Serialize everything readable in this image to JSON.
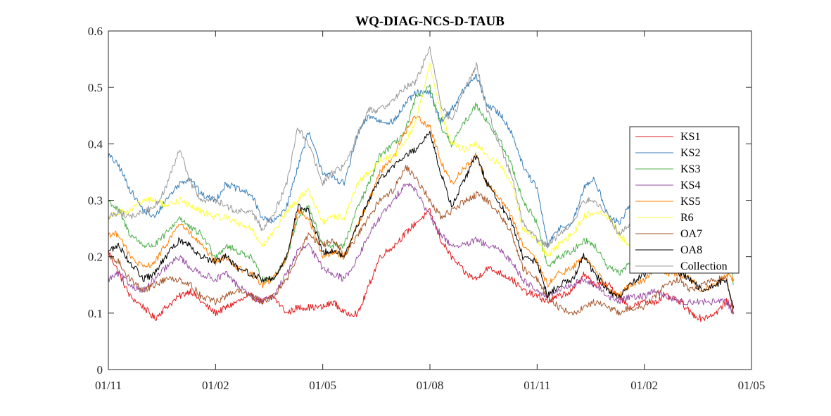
{
  "chart_data": {
    "type": "line",
    "title": "WQ-DIAG-NCS-D-TAUB",
    "xlabel": "",
    "ylabel": "",
    "x_range_index": [
      0,
      18
    ],
    "x_ticks": [
      {
        "index": 0,
        "label": "01/11"
      },
      {
        "index": 3,
        "label": "01/02"
      },
      {
        "index": 6,
        "label": "01/05"
      },
      {
        "index": 9,
        "label": "01/08"
      },
      {
        "index": 12,
        "label": "01/11"
      },
      {
        "index": 15,
        "label": "01/02"
      },
      {
        "index": 18,
        "label": "01/05"
      }
    ],
    "ylim": [
      0,
      0.6
    ],
    "y_ticks": [
      0,
      0.1,
      0.2,
      0.3,
      0.4,
      0.5,
      0.6
    ],
    "y_tick_labels": [
      "0",
      "0.1",
      "0.2",
      "0.3",
      "0.4",
      "0.5",
      "0.6"
    ],
    "grid": false,
    "legend_position": "right",
    "series": [
      {
        "name": "KS1",
        "color": "#e41a1c",
        "x": [
          0,
          0.3,
          0.6,
          1,
          1.3,
          1.6,
          2,
          2.3,
          2.6,
          3,
          3.3,
          3.6,
          4,
          4.3,
          4.6,
          5,
          5.3,
          5.6,
          6,
          6.3,
          6.6,
          7,
          7.3,
          7.6,
          8,
          8.3,
          8.6,
          9,
          9.3,
          9.6,
          10,
          10.3,
          10.6,
          11,
          11.3,
          11.6,
          12,
          12.3,
          12.6,
          13,
          13.3,
          13.6,
          14,
          14.3,
          14.6,
          15,
          15.3,
          15.6,
          16,
          16.3,
          16.6,
          17,
          17.3,
          17.5
        ],
        "y": [
          0.21,
          0.17,
          0.13,
          0.11,
          0.09,
          0.11,
          0.13,
          0.14,
          0.12,
          0.1,
          0.11,
          0.12,
          0.13,
          0.12,
          0.13,
          0.1,
          0.11,
          0.11,
          0.11,
          0.12,
          0.1,
          0.1,
          0.15,
          0.2,
          0.22,
          0.24,
          0.26,
          0.28,
          0.23,
          0.2,
          0.17,
          0.16,
          0.18,
          0.17,
          0.16,
          0.14,
          0.13,
          0.12,
          0.13,
          0.14,
          0.17,
          0.15,
          0.15,
          0.13,
          0.11,
          0.12,
          0.12,
          0.13,
          0.12,
          0.1,
          0.09,
          0.1,
          0.12,
          0.11
        ]
      },
      {
        "name": "KS2",
        "color": "#377eb8",
        "x": [
          0,
          0.3,
          0.6,
          1,
          1.3,
          1.6,
          2,
          2.3,
          2.6,
          3,
          3.3,
          3.6,
          4,
          4.3,
          4.6,
          5,
          5.3,
          5.6,
          6,
          6.3,
          6.6,
          7,
          7.3,
          7.6,
          8,
          8.3,
          8.6,
          9,
          9.3,
          9.6,
          10,
          10.3,
          10.6,
          11,
          11.3,
          11.6,
          12,
          12.3,
          12.6,
          13,
          13.3,
          13.6,
          14,
          14.3,
          14.6,
          15,
          15.3,
          15.6,
          16,
          16.3,
          16.6,
          17,
          17.3,
          17.5
        ],
        "y": [
          0.38,
          0.36,
          0.32,
          0.28,
          0.27,
          0.3,
          0.33,
          0.34,
          0.31,
          0.3,
          0.33,
          0.32,
          0.31,
          0.27,
          0.26,
          0.29,
          0.36,
          0.42,
          0.35,
          0.34,
          0.33,
          0.42,
          0.45,
          0.44,
          0.44,
          0.47,
          0.49,
          0.49,
          0.44,
          0.46,
          0.5,
          0.52,
          0.47,
          0.45,
          0.42,
          0.36,
          0.32,
          0.22,
          0.25,
          0.26,
          0.32,
          0.34,
          0.27,
          0.26,
          0.29,
          0.3,
          0.3,
          0.28,
          0.26,
          0.25,
          0.27,
          0.29,
          0.32,
          0.23
        ]
      },
      {
        "name": "KS3",
        "color": "#4daf4a",
        "x": [
          0,
          0.3,
          0.6,
          1,
          1.3,
          1.6,
          2,
          2.3,
          2.6,
          3,
          3.3,
          3.6,
          4,
          4.3,
          4.6,
          5,
          5.3,
          5.6,
          6,
          6.3,
          6.6,
          7,
          7.3,
          7.6,
          8,
          8.3,
          8.6,
          9,
          9.3,
          9.6,
          10,
          10.3,
          10.6,
          11,
          11.3,
          11.6,
          12,
          12.3,
          12.6,
          13,
          13.3,
          13.6,
          14,
          14.3,
          14.6,
          15,
          15.3,
          15.6,
          16,
          16.3,
          16.6,
          17,
          17.3,
          17.5
        ],
        "y": [
          0.3,
          0.28,
          0.24,
          0.22,
          0.22,
          0.24,
          0.27,
          0.25,
          0.24,
          0.2,
          0.22,
          0.21,
          0.2,
          0.16,
          0.16,
          0.2,
          0.27,
          0.29,
          0.22,
          0.22,
          0.22,
          0.29,
          0.33,
          0.38,
          0.4,
          0.42,
          0.48,
          0.5,
          0.43,
          0.4,
          0.44,
          0.47,
          0.44,
          0.4,
          0.36,
          0.3,
          0.26,
          0.18,
          0.2,
          0.21,
          0.23,
          0.22,
          0.18,
          0.17,
          0.19,
          0.2,
          0.22,
          0.22,
          0.23,
          0.21,
          0.2,
          0.21,
          0.23,
          0.15
        ]
      },
      {
        "name": "KS4",
        "color": "#984ea3",
        "x": [
          0,
          0.3,
          0.6,
          1,
          1.3,
          1.6,
          2,
          2.3,
          2.6,
          3,
          3.3,
          3.6,
          4,
          4.3,
          4.6,
          5,
          5.3,
          5.6,
          6,
          6.3,
          6.6,
          7,
          7.3,
          7.6,
          8,
          8.3,
          8.6,
          9,
          9.3,
          9.6,
          10,
          10.3,
          10.6,
          11,
          11.3,
          11.6,
          12,
          12.3,
          12.6,
          13,
          13.3,
          13.6,
          14,
          14.3,
          14.6,
          15,
          15.3,
          15.6,
          16,
          16.3,
          16.6,
          17,
          17.3,
          17.5
        ],
        "y": [
          0.16,
          0.17,
          0.15,
          0.14,
          0.16,
          0.18,
          0.2,
          0.18,
          0.17,
          0.16,
          0.17,
          0.15,
          0.13,
          0.12,
          0.13,
          0.17,
          0.21,
          0.22,
          0.18,
          0.17,
          0.16,
          0.2,
          0.24,
          0.27,
          0.3,
          0.33,
          0.32,
          0.27,
          0.24,
          0.22,
          0.22,
          0.23,
          0.22,
          0.21,
          0.19,
          0.16,
          0.14,
          0.13,
          0.14,
          0.15,
          0.16,
          0.15,
          0.13,
          0.12,
          0.13,
          0.13,
          0.14,
          0.13,
          0.12,
          0.12,
          0.12,
          0.12,
          0.12,
          0.1
        ]
      },
      {
        "name": "KS5",
        "color": "#ff7f00",
        "x": [
          0,
          0.3,
          0.6,
          1,
          1.3,
          1.6,
          2,
          2.3,
          2.6,
          3,
          3.3,
          3.6,
          4,
          4.3,
          4.6,
          5,
          5.3,
          5.6,
          6,
          6.3,
          6.6,
          7,
          7.3,
          7.6,
          8,
          8.3,
          8.6,
          9,
          9.3,
          9.6,
          10,
          10.3,
          10.6,
          11,
          11.3,
          11.6,
          12,
          12.3,
          12.6,
          13,
          13.3,
          13.6,
          14,
          14.3,
          14.6,
          15,
          15.3,
          15.6,
          16,
          16.3,
          16.6,
          17,
          17.3,
          17.5
        ],
        "y": [
          0.24,
          0.24,
          0.2,
          0.18,
          0.19,
          0.22,
          0.26,
          0.24,
          0.22,
          0.19,
          0.2,
          0.18,
          0.17,
          0.15,
          0.16,
          0.2,
          0.28,
          0.27,
          0.2,
          0.21,
          0.2,
          0.26,
          0.3,
          0.35,
          0.38,
          0.42,
          0.45,
          0.43,
          0.37,
          0.33,
          0.36,
          0.38,
          0.33,
          0.3,
          0.27,
          0.22,
          0.19,
          0.15,
          0.17,
          0.18,
          0.2,
          0.18,
          0.14,
          0.13,
          0.15,
          0.16,
          0.18,
          0.17,
          0.17,
          0.16,
          0.14,
          0.15,
          0.17,
          0.16
        ]
      },
      {
        "name": "R6",
        "color": "#ffff33",
        "x": [
          0,
          0.3,
          0.6,
          1,
          1.3,
          1.6,
          2,
          2.3,
          2.6,
          3,
          3.3,
          3.6,
          4,
          4.3,
          4.6,
          5,
          5.3,
          5.6,
          6,
          6.3,
          6.6,
          7,
          7.3,
          7.6,
          8,
          8.3,
          8.6,
          9,
          9.3,
          9.6,
          10,
          10.3,
          10.6,
          11,
          11.3,
          11.6,
          12,
          12.3,
          12.6,
          13,
          13.3,
          13.6,
          14,
          14.3,
          14.6,
          15,
          15.3,
          15.6,
          16,
          16.3,
          16.6,
          17,
          17.3,
          17.5
        ],
        "y": [
          0.27,
          0.28,
          0.28,
          0.3,
          0.3,
          0.29,
          0.3,
          0.29,
          0.28,
          0.27,
          0.27,
          0.26,
          0.25,
          0.22,
          0.24,
          0.28,
          0.3,
          0.32,
          0.26,
          0.27,
          0.27,
          0.33,
          0.35,
          0.37,
          0.38,
          0.4,
          0.44,
          0.54,
          0.46,
          0.4,
          0.39,
          0.4,
          0.38,
          0.36,
          0.33,
          0.25,
          0.23,
          0.2,
          0.22,
          0.24,
          0.27,
          0.28,
          0.27,
          0.24,
          0.22,
          0.24,
          0.24,
          0.22,
          0.22,
          0.2,
          0.21,
          0.22,
          0.23,
          0.22
        ]
      },
      {
        "name": "OA7",
        "color": "#a65628",
        "x": [
          0,
          0.3,
          0.6,
          1,
          1.3,
          1.6,
          2,
          2.3,
          2.6,
          3,
          3.3,
          3.6,
          4,
          4.3,
          4.6,
          5,
          5.3,
          5.6,
          6,
          6.3,
          6.6,
          7,
          7.3,
          7.6,
          8,
          8.3,
          8.6,
          9,
          9.3,
          9.6,
          10,
          10.3,
          10.6,
          11,
          11.3,
          11.6,
          12,
          12.3,
          12.6,
          13,
          13.3,
          13.6,
          14,
          14.3,
          14.6,
          15,
          15.3,
          15.6,
          16,
          16.3,
          16.6,
          17,
          17.3,
          17.5
        ],
        "y": [
          0.2,
          0.19,
          0.16,
          0.14,
          0.15,
          0.16,
          0.16,
          0.15,
          0.13,
          0.12,
          0.13,
          0.14,
          0.13,
          0.12,
          0.13,
          0.16,
          0.2,
          0.24,
          0.22,
          0.23,
          0.2,
          0.24,
          0.27,
          0.3,
          0.32,
          0.36,
          0.34,
          0.3,
          0.27,
          0.28,
          0.3,
          0.31,
          0.3,
          0.27,
          0.24,
          0.18,
          0.16,
          0.13,
          0.11,
          0.1,
          0.11,
          0.12,
          0.11,
          0.1,
          0.11,
          0.11,
          0.13,
          0.15,
          0.16,
          0.14,
          0.15,
          0.16,
          0.16,
          0.1
        ]
      },
      {
        "name": "OA8",
        "color": "#000000",
        "x": [
          0,
          0.3,
          0.6,
          1,
          1.3,
          1.6,
          2,
          2.3,
          2.6,
          3,
          3.3,
          3.6,
          4,
          4.3,
          4.6,
          5,
          5.3,
          5.6,
          6,
          6.3,
          6.6,
          7,
          7.3,
          7.6,
          8,
          8.3,
          8.6,
          9,
          9.3,
          9.6,
          10,
          10.3,
          10.6,
          11,
          11.3,
          11.6,
          12,
          12.3,
          12.6,
          13,
          13.3,
          13.6,
          14,
          14.3,
          14.6,
          15,
          15.3,
          15.6,
          16,
          16.3,
          16.6,
          17,
          17.3,
          17.5
        ],
        "y": [
          0.21,
          0.22,
          0.19,
          0.16,
          0.17,
          0.2,
          0.23,
          0.22,
          0.2,
          0.19,
          0.2,
          0.18,
          0.17,
          0.16,
          0.16,
          0.2,
          0.29,
          0.28,
          0.21,
          0.21,
          0.2,
          0.26,
          0.3,
          0.34,
          0.36,
          0.38,
          0.39,
          0.42,
          0.35,
          0.29,
          0.34,
          0.38,
          0.33,
          0.29,
          0.26,
          0.2,
          0.19,
          0.13,
          0.15,
          0.16,
          0.2,
          0.17,
          0.14,
          0.13,
          0.15,
          0.17,
          0.19,
          0.18,
          0.17,
          0.16,
          0.14,
          0.15,
          0.16,
          0.11
        ]
      },
      {
        "name": "Collection",
        "color": "#999999",
        "x": [
          0,
          0.3,
          0.6,
          1,
          1.3,
          1.6,
          2,
          2.3,
          2.6,
          3,
          3.3,
          3.6,
          4,
          4.3,
          4.6,
          5,
          5.3,
          5.6,
          6,
          6.3,
          6.6,
          7,
          7.3,
          7.6,
          8,
          8.3,
          8.6,
          9,
          9.3,
          9.6,
          10,
          10.3,
          10.6,
          11,
          11.3,
          11.6,
          12,
          12.3,
          12.6,
          13,
          13.3,
          13.6,
          14,
          14.3,
          14.6,
          15,
          15.3,
          15.6,
          16,
          16.3,
          16.6,
          17,
          17.3,
          17.5
        ],
        "y": [
          0.27,
          0.28,
          0.27,
          0.28,
          0.29,
          0.32,
          0.39,
          0.33,
          0.3,
          0.3,
          0.29,
          0.28,
          0.28,
          0.25,
          0.27,
          0.33,
          0.43,
          0.4,
          0.33,
          0.35,
          0.36,
          0.42,
          0.46,
          0.46,
          0.48,
          0.5,
          0.51,
          0.57,
          0.47,
          0.44,
          0.5,
          0.54,
          0.46,
          0.39,
          0.34,
          0.26,
          0.23,
          0.22,
          0.24,
          0.26,
          0.3,
          0.3,
          0.27,
          0.24,
          0.26,
          0.28,
          0.31,
          0.28,
          0.27,
          0.24,
          0.22,
          0.24,
          0.26,
          0.23
        ]
      }
    ]
  }
}
